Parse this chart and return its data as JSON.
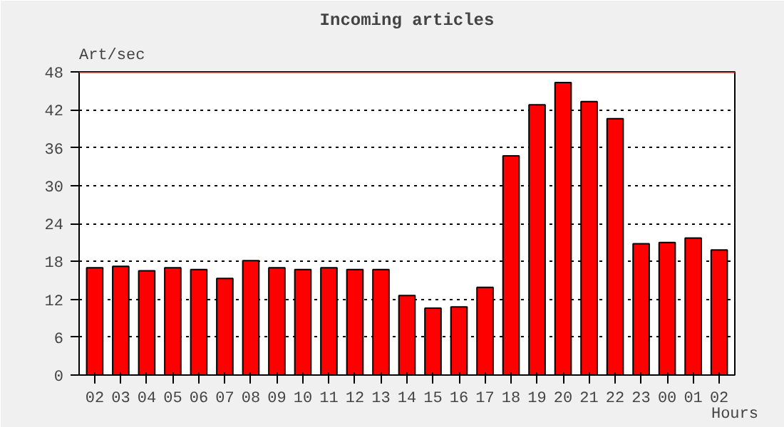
{
  "chart_data": {
    "type": "bar",
    "title": "Incoming articles",
    "ylabel": "Art/sec",
    "xlabel": "Hours",
    "categories": [
      "02",
      "03",
      "04",
      "05",
      "06",
      "07",
      "08",
      "09",
      "10",
      "11",
      "12",
      "13",
      "14",
      "15",
      "16",
      "17",
      "18",
      "19",
      "20",
      "21",
      "22",
      "23",
      "00",
      "01",
      "02"
    ],
    "values": [
      17.0,
      17.2,
      16.5,
      17.0,
      16.7,
      15.3,
      18.1,
      17.0,
      16.7,
      17.0,
      16.7,
      16.7,
      12.6,
      10.6,
      10.8,
      13.9,
      34.7,
      42.8,
      46.3,
      43.3,
      40.6,
      20.8,
      21.0,
      21.7,
      19.8
    ],
    "color": "#ff0000",
    "ylim": [
      0,
      48
    ],
    "yticks": [
      0,
      6,
      12,
      18,
      24,
      30,
      36,
      42,
      48
    ],
    "grid": "y",
    "line_style": "dotted",
    "ref_lines": [
      {
        "axis": "y",
        "value": 48,
        "color": "#ff0000"
      }
    ]
  }
}
